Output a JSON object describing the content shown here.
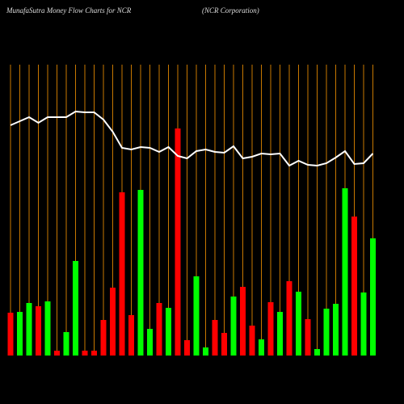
{
  "chart_data": {
    "type": "bar",
    "title": "MunafaSutra  Money Flow  Charts for NCR",
    "subtitle": "(NCR Corporation)",
    "ylim": [
      0,
      360
    ],
    "values": [
      53,
      54,
      65,
      61,
      67,
      6,
      29,
      117,
      6,
      6,
      44,
      84,
      202,
      50,
      205,
      33,
      65,
      59,
      281,
      19,
      98,
      10,
      44,
      28,
      73,
      85,
      37,
      20,
      66,
      54,
      92,
      79,
      45,
      8,
      58,
      64,
      207,
      172,
      78,
      145
    ],
    "colors": [
      "#ff0000",
      "#00ff00",
      "#00ff00",
      "#ff0000",
      "#00ff00",
      "#ff0000",
      "#00ff00",
      "#00ff00",
      "#ff0000",
      "#ff0000",
      "#ff0000",
      "#ff0000",
      "#ff0000",
      "#ff0000",
      "#00ff00",
      "#00ff00",
      "#ff0000",
      "#00ff00",
      "#ff0000",
      "#ff0000",
      "#00ff00",
      "#00ff00",
      "#ff0000",
      "#ff0000",
      "#00ff00",
      "#ff0000",
      "#ff0000",
      "#00ff00",
      "#ff0000",
      "#00ff00",
      "#ff0000",
      "#00ff00",
      "#ff0000",
      "#00ff00",
      "#00ff00",
      "#00ff00",
      "#00ff00",
      "#ff0000",
      "#00ff00",
      "#00ff00"
    ],
    "line_values": [
      285,
      290,
      295,
      288,
      295,
      295,
      295,
      302,
      301,
      301,
      292,
      277,
      257,
      255,
      258,
      257,
      252,
      258,
      247,
      244,
      253,
      255,
      252,
      251,
      259,
      244,
      246,
      250,
      249,
      250,
      235,
      241,
      236,
      235,
      238,
      245,
      253,
      237,
      238,
      250
    ],
    "line_color": "#ffffff",
    "gridline_color": "#c87800"
  }
}
